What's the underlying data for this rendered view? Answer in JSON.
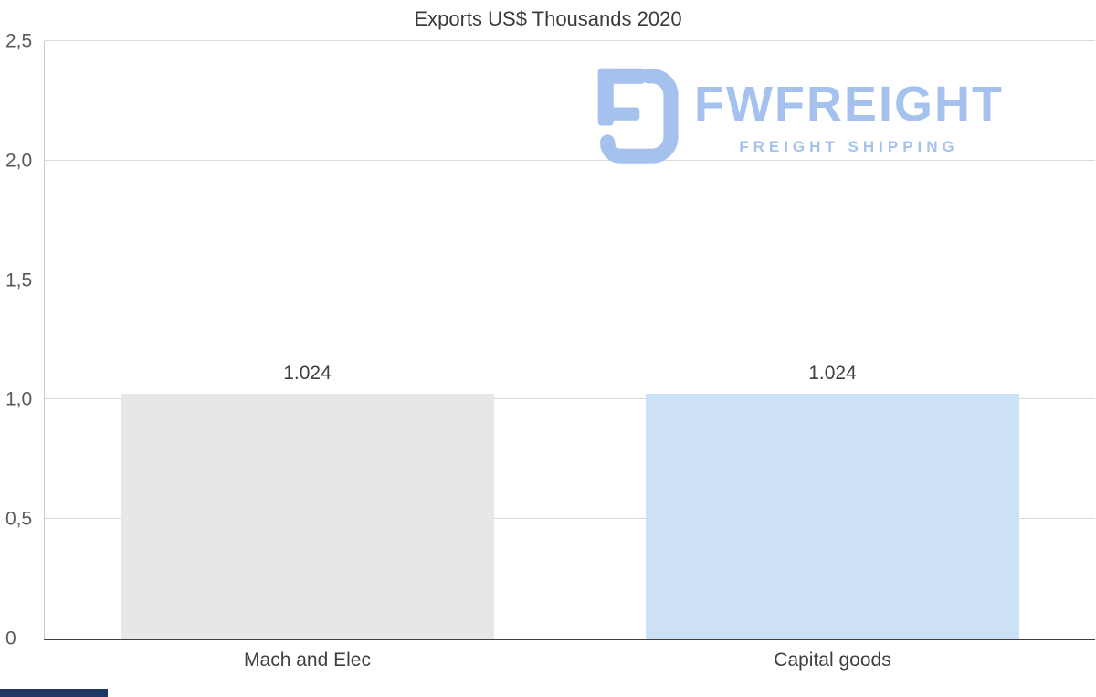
{
  "page": {
    "title": "Exports US$ Thousands 2020"
  },
  "watermark": {
    "brand": "FWFREIGHT",
    "tagline": "FREIGHT SHIPPING",
    "color": "#a5c2ef"
  },
  "footer": {
    "accent_color": "#203864"
  },
  "chart_data": {
    "type": "bar",
    "title": "Exports US$ Thousands 2020",
    "categories": [
      "Mach and Elec",
      "Capital goods"
    ],
    "values": [
      1.024,
      1.024
    ],
    "data_labels": [
      "1.024",
      "1.024"
    ],
    "bar_colors": [
      "#e7e7e7",
      "#cde1f6"
    ],
    "xlabel": "",
    "ylabel": "",
    "ylim": [
      0,
      2.5
    ],
    "y_ticks": [
      {
        "value": 0,
        "label": "0"
      },
      {
        "value": 0.5,
        "label": "0,5"
      },
      {
        "value": 1.0,
        "label": "1,0"
      },
      {
        "value": 1.5,
        "label": "1,5"
      },
      {
        "value": 2.0,
        "label": "2,0"
      },
      {
        "value": 2.5,
        "label": "2,5"
      }
    ],
    "grid": true,
    "legend": false
  }
}
